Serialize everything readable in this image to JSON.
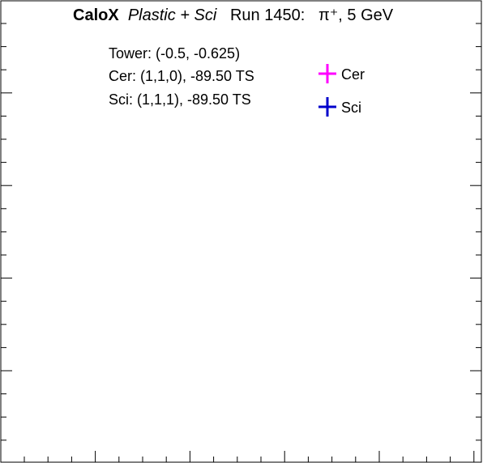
{
  "chart_data": {
    "type": "scatter",
    "title": {
      "experiment": "CaloX",
      "material": "Plastic + Sci",
      "run": "Run 1450:",
      "beam": "π⁺, 5 GeV"
    },
    "info_lines": [
      "Tower: (-0.5, -0.625)",
      "Cer: (1,1,0), -89.50 TS",
      "Sci: (1,1,1), -89.50 TS"
    ],
    "legend": [
      {
        "name": "Cer",
        "color": "#ff00ff"
      },
      {
        "name": "Sci",
        "color": "#0000cc"
      }
    ],
    "series": [
      {
        "name": "Cer",
        "color": "#ff00ff",
        "points": []
      },
      {
        "name": "Sci",
        "color": "#0000cc",
        "points": []
      }
    ],
    "grid": false,
    "legend_placement": "top-right"
  }
}
